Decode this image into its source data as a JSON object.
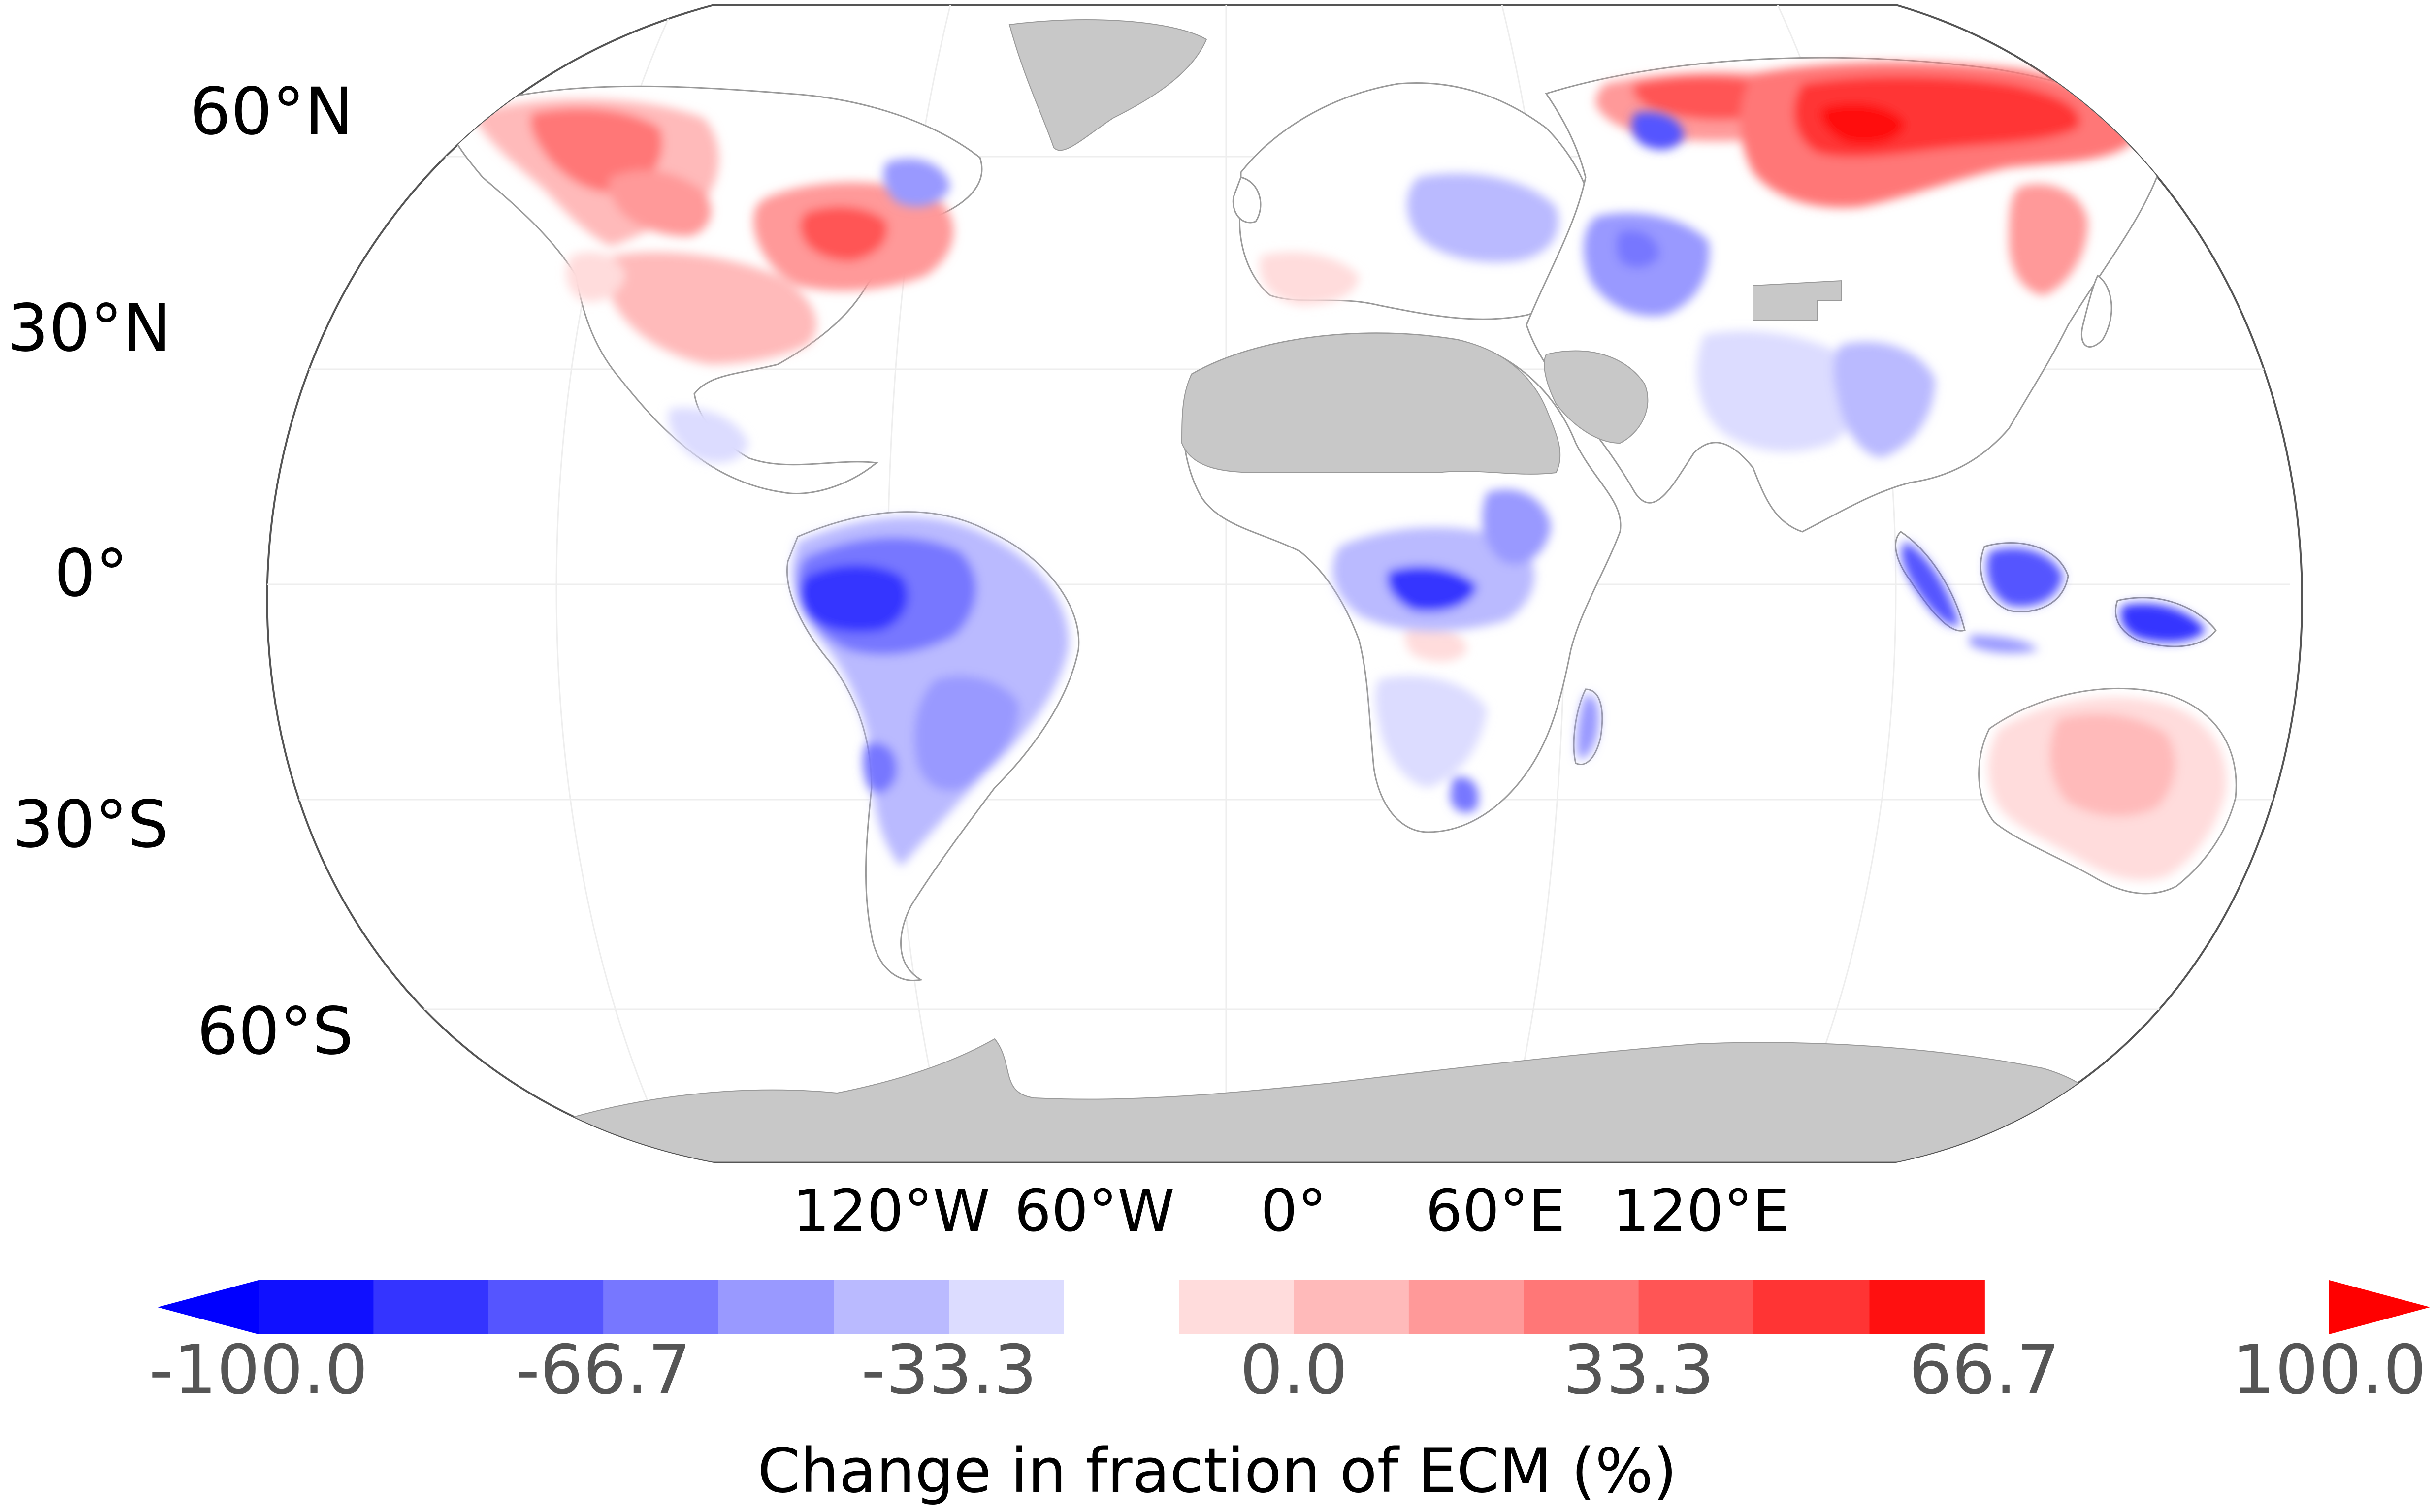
{
  "map": {
    "projection": "Robinson",
    "land_no_data_color": "#c8c8c8",
    "ocean_color": "#ffffff",
    "lat_labels": [
      "60°N",
      "30°N",
      "0°",
      "30°S",
      "60°S"
    ],
    "lon_labels": [
      "120°W",
      "60°W",
      "0°",
      "60°E",
      "120°E"
    ],
    "regions": [
      {
        "name": "Western Canada / Alaska",
        "category": 4
      },
      {
        "name": "Hudson Bay / Quebec",
        "category": 4
      },
      {
        "name": "Eastern United States",
        "category": 2
      },
      {
        "name": "Western Siberia",
        "category": 4
      },
      {
        "name": "Central Siberia",
        "category": 5
      },
      {
        "name": "Eastern Siberia",
        "category": 3
      },
      {
        "name": "Central Asia",
        "category": -2
      },
      {
        "name": "Eastern Europe",
        "category": -1
      },
      {
        "name": "South Asia",
        "category": -1
      },
      {
        "name": "Amazon basin",
        "category": -6
      },
      {
        "name": "Eastern Brazil",
        "category": -3
      },
      {
        "name": "Gran Chaco",
        "category": -2
      },
      {
        "name": "Patagonia",
        "category": -1
      },
      {
        "name": "Congo basin",
        "category": -5
      },
      {
        "name": "East Africa",
        "category": -2
      },
      {
        "name": "Southern Africa",
        "category": -1
      },
      {
        "name": "Sumatra",
        "category": -5
      },
      {
        "name": "Borneo",
        "category": -5
      },
      {
        "name": "New Guinea",
        "category": -5
      },
      {
        "name": "Australia",
        "category": 2
      },
      {
        "name": "New Zealand",
        "category": -2
      }
    ]
  },
  "colorbar": {
    "title": "Change in fraction of ECM (%)",
    "tick_labels": [
      "-100.0",
      "-66.7",
      "-33.3",
      "0.0",
      "33.3",
      "66.7",
      "100.0"
    ],
    "ticks": [
      -100.0,
      -66.7,
      -33.3,
      0.0,
      33.3,
      66.7,
      100.0
    ],
    "range": [
      -100,
      100
    ],
    "extend": "both",
    "bins": [
      {
        "from": -100.0,
        "to": -88.9,
        "color": "#1010ff"
      },
      {
        "from": -88.9,
        "to": -77.8,
        "color": "#3434ff"
      },
      {
        "from": -77.8,
        "to": -66.7,
        "color": "#5555ff"
      },
      {
        "from": -66.7,
        "to": -55.6,
        "color": "#7777ff"
      },
      {
        "from": -55.6,
        "to": -44.4,
        "color": "#9999ff"
      },
      {
        "from": -44.4,
        "to": -33.3,
        "color": "#babaff"
      },
      {
        "from": -33.3,
        "to": -22.2,
        "color": "#dcdcff"
      },
      {
        "from": -22.2,
        "to": -11.1,
        "color": "#ffffff"
      },
      {
        "from": -11.1,
        "to": 0.0,
        "color": "#ffdcdc"
      },
      {
        "from": 0.0,
        "to": 11.1,
        "color": "#ffbaba"
      },
      {
        "from": 11.1,
        "to": 22.2,
        "color": "#ff9999"
      },
      {
        "from": 22.2,
        "to": 33.3,
        "color": "#ff7777"
      },
      {
        "from": 33.3,
        "to": 44.4,
        "color": "#ff5555"
      },
      {
        "from": 44.4,
        "to": 55.6,
        "color": "#ff3434"
      },
      {
        "from": 55.6,
        "to": 66.7,
        "color": "#ff1010"
      }
    ],
    "extend_low_color": "#0000ff",
    "extend_high_color": "#ff0000"
  },
  "palette": {
    "neg": [
      "#dcdcff",
      "#babaff",
      "#9999ff",
      "#7777ff",
      "#5555ff",
      "#3434ff",
      "#1010ff"
    ],
    "pos": [
      "#ffdcdc",
      "#ffbaba",
      "#ff9999",
      "#ff7777",
      "#ff5555",
      "#ff3434",
      "#ff1010"
    ]
  }
}
